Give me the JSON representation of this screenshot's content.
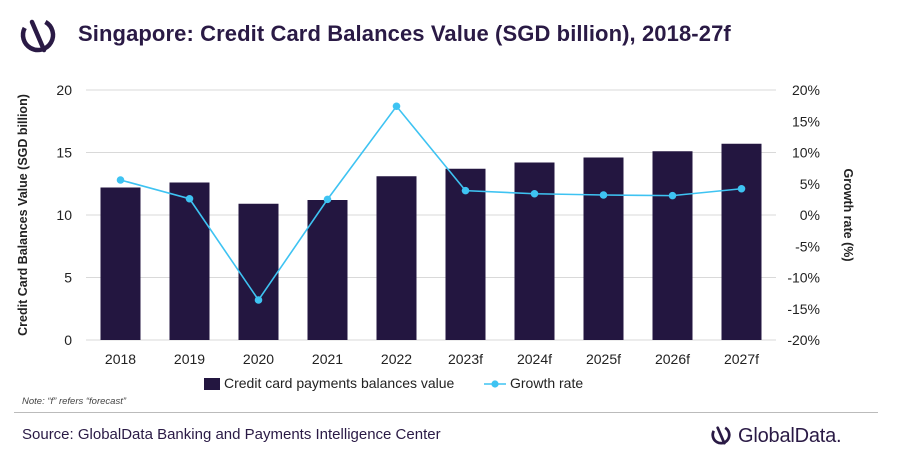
{
  "header": {
    "title": "Singapore: Credit Card Balances Value (SGD billion), 2018-27f"
  },
  "note": "Note: “f” refers “forecast”",
  "source": "Source: GlobalData Banking and Payments Intelligence Center",
  "brand": {
    "name": "GlobalData."
  },
  "colors": {
    "bar": "#231640",
    "line": "#3ec3f2",
    "grid": "#d9d9d9",
    "text": "#222222"
  },
  "chart_data": {
    "type": "bar",
    "title": "Singapore: Credit Card Balances Value (SGD billion), 2018-27f",
    "categories": [
      "2018",
      "2019",
      "2020",
      "2021",
      "2022",
      "2023f",
      "2024f",
      "2025f",
      "2026f",
      "2027f"
    ],
    "series": [
      {
        "name": "Credit card payments balances value",
        "type": "bar",
        "axis": "left",
        "values": [
          12.2,
          12.6,
          10.9,
          11.2,
          13.1,
          13.7,
          14.2,
          14.6,
          15.1,
          15.7
        ]
      },
      {
        "name": "Growth rate",
        "type": "line",
        "axis": "right",
        "values": [
          5.6,
          2.6,
          -13.6,
          2.5,
          17.4,
          3.9,
          3.4,
          3.2,
          3.1,
          4.2
        ]
      }
    ],
    "ylabel": "Credit Card Balances Value (SGD billion)",
    "ylim": [
      0,
      20
    ],
    "yticks": [
      "0",
      "5",
      "10",
      "15",
      "20"
    ],
    "y2label": "Growth rate (%)",
    "y2lim": [
      -20,
      20
    ],
    "y2ticks": [
      "-20%",
      "-15%",
      "-10%",
      "-5%",
      "0%",
      "5%",
      "10%",
      "15%",
      "20%"
    ],
    "grid": true,
    "legend": "bottom"
  }
}
